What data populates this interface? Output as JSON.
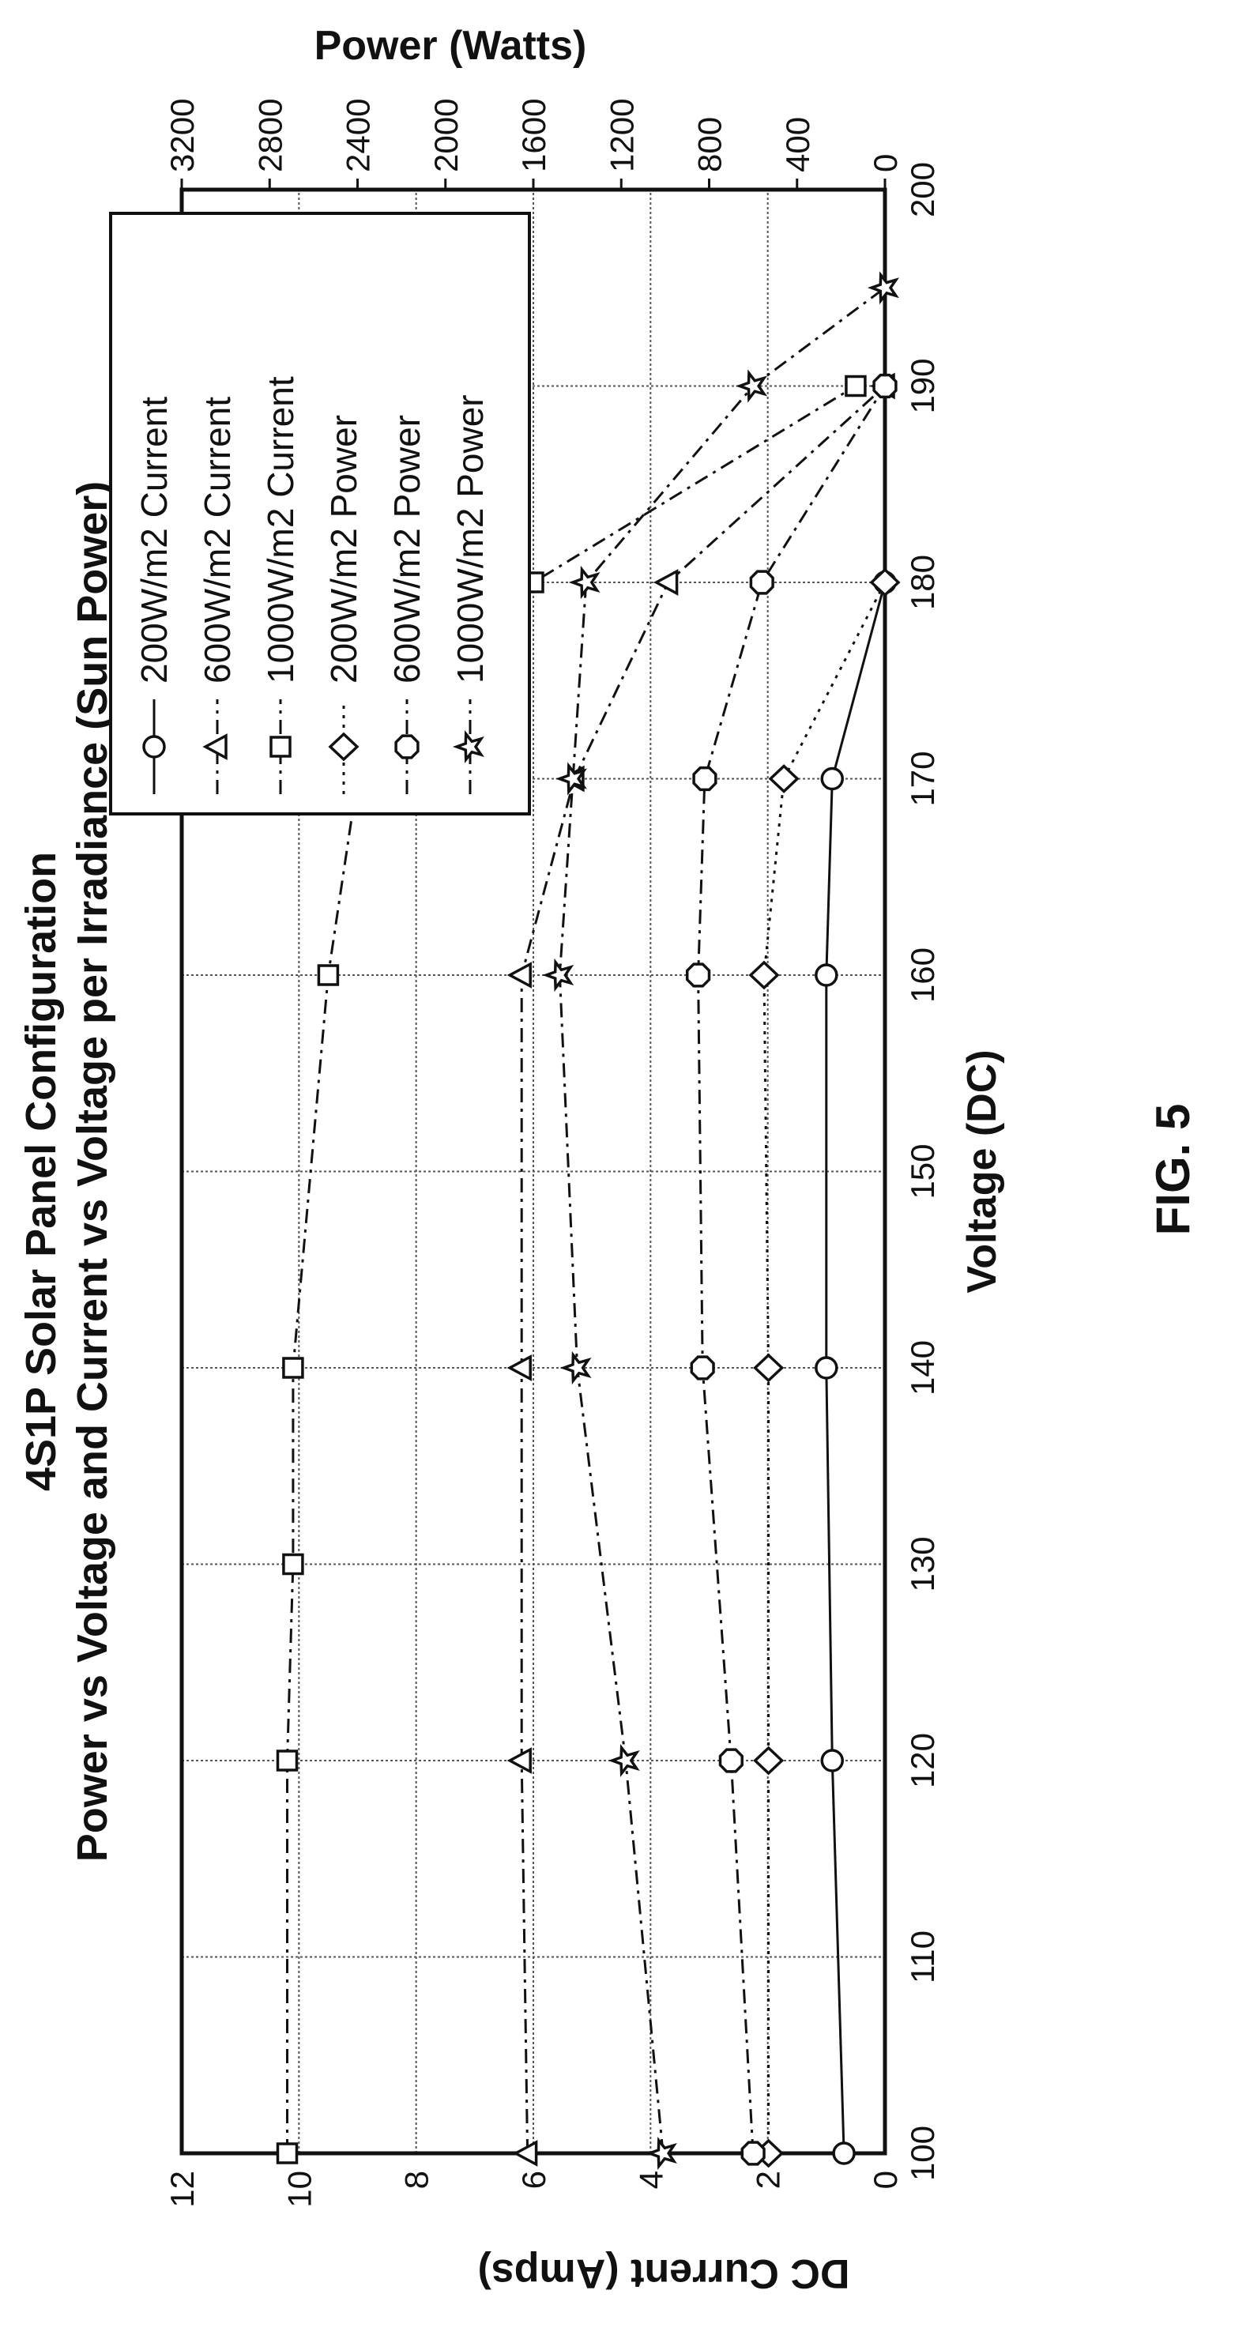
{
  "figure_label": "FIG. 5",
  "chart_data": {
    "type": "line",
    "title": "4S1P Solar Panel Configuration",
    "subtitle": "Power vs Voltage and Current vs Voltage per Irradiance (Sun Power)",
    "xlabel": "Voltage (DC)",
    "ylabel": "DC Current (Amps)",
    "y2label": "Power (Watts)",
    "xlim": [
      100,
      200
    ],
    "ylim": [
      0,
      12
    ],
    "y2lim": [
      0,
      3200
    ],
    "x_ticks": [
      "100",
      "110",
      "120",
      "130",
      "140",
      "150",
      "160",
      "170",
      "180",
      "190",
      "200"
    ],
    "y_ticks": [
      "0",
      "2",
      "4",
      "6",
      "8",
      "10",
      "12"
    ],
    "y2_ticks": [
      "0",
      "400",
      "800",
      "1200",
      "1600",
      "2000",
      "2400",
      "2800",
      "3200"
    ],
    "grid": true,
    "legend_position": "top-right (rotated)",
    "series": [
      {
        "name": "200W/m2 Current",
        "axis": "left",
        "marker": "circle",
        "dash": "solid",
        "points": [
          [
            100,
            0.7
          ],
          [
            120,
            0.9
          ],
          [
            140,
            1.0
          ],
          [
            160,
            1.0
          ],
          [
            170,
            0.9
          ],
          [
            180,
            0.0
          ]
        ]
      },
      {
        "name": "600W/m2 Current",
        "axis": "left",
        "marker": "triangle",
        "dash": "dashdot",
        "points": [
          [
            100,
            6.1
          ],
          [
            120,
            6.2
          ],
          [
            140,
            6.2
          ],
          [
            160,
            6.2
          ],
          [
            170,
            5.3
          ],
          [
            180,
            3.7
          ],
          [
            190,
            0.0
          ]
        ]
      },
      {
        "name": "1000W/m2 Current",
        "axis": "left",
        "marker": "square",
        "dash": "dashdot",
        "points": [
          [
            100,
            10.2
          ],
          [
            120,
            10.2
          ],
          [
            130,
            10.1
          ],
          [
            140,
            10.1
          ],
          [
            160,
            9.5
          ],
          [
            170,
            9.0
          ],
          [
            180,
            6.0
          ],
          [
            190,
            0.5
          ]
        ]
      },
      {
        "name": "200W/m2 Power",
        "axis": "right",
        "marker": "diamond",
        "dash": "dotted",
        "points": [
          [
            100,
            530
          ],
          [
            120,
            530
          ],
          [
            140,
            530
          ],
          [
            160,
            550
          ],
          [
            170,
            460
          ],
          [
            180,
            0
          ]
        ]
      },
      {
        "name": "600W/m2 Power",
        "axis": "right",
        "marker": "octagon",
        "dash": "dashdot",
        "points": [
          [
            100,
            600
          ],
          [
            120,
            700
          ],
          [
            140,
            830
          ],
          [
            160,
            850
          ],
          [
            170,
            820
          ],
          [
            180,
            560
          ],
          [
            190,
            0
          ]
        ]
      },
      {
        "name": "1000W/m2 Power",
        "axis": "right",
        "marker": "star",
        "dash": "dashdot",
        "points": [
          [
            100,
            1010
          ],
          [
            120,
            1180
          ],
          [
            140,
            1400
          ],
          [
            160,
            1480
          ],
          [
            170,
            1420
          ],
          [
            180,
            1360
          ],
          [
            190,
            600
          ],
          [
            195,
            0
          ]
        ]
      }
    ]
  }
}
